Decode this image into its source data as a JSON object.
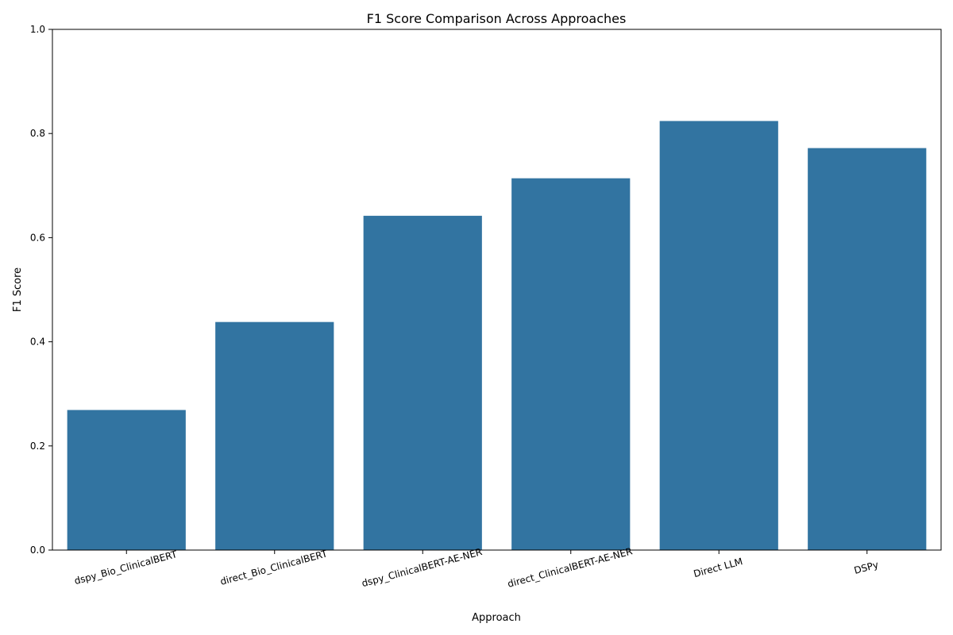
{
  "chart_data": {
    "type": "bar",
    "title": "F1 Score Comparison Across Approaches",
    "xlabel": "Approach",
    "ylabel": "F1 Score",
    "categories": [
      "dspy_Bio_ClinicalBERT",
      "direct_Bio_ClinicalBERT",
      "dspy_ClinicalBERT-AE-NER",
      "direct_ClinicalBERT-AE-NER",
      "Direct LLM",
      "DSPy"
    ],
    "values": [
      0.269,
      0.438,
      0.642,
      0.714,
      0.824,
      0.772
    ],
    "ylim": [
      0,
      1.0
    ],
    "yticks": [
      "0.0",
      "0.2",
      "0.4",
      "0.6",
      "0.8",
      "1.0"
    ],
    "grid": false,
    "legend": "none",
    "bar_color": "#3274a1",
    "tick_label_rotation": "15 degrees"
  }
}
